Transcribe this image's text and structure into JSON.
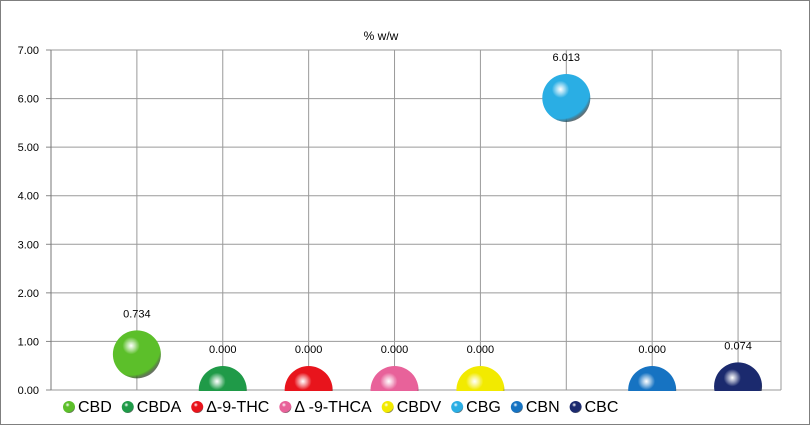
{
  "chart_data": {
    "type": "scatter",
    "title": "% w/w",
    "categories": [
      "CBD",
      "CBDA",
      "Δ-9-THC",
      "Δ -9-THCA",
      "CBDV",
      "CBG",
      "CBN",
      "CBC"
    ],
    "values": [
      0.734,
      0.0,
      0.0,
      0.0,
      0.0,
      6.013,
      0.0,
      0.074
    ],
    "data_labels": [
      "0.734",
      "0.000",
      "0.000",
      "0.000",
      "0.000",
      "6.013",
      "0.000",
      "0.074"
    ],
    "colors": [
      "#5cbf2a",
      "#1f9a48",
      "#e8141c",
      "#e8629a",
      "#f2ea00",
      "#2aaee4",
      "#1673c2",
      "#1b2a6e"
    ],
    "ylim": [
      0,
      7
    ],
    "yticks": [
      "0.00",
      "1.00",
      "2.00",
      "3.00",
      "4.00",
      "5.00",
      "6.00",
      "7.00"
    ],
    "grid": true,
    "legend": "bottom",
    "marker": "sphere",
    "xlabel": "",
    "ylabel": ""
  }
}
